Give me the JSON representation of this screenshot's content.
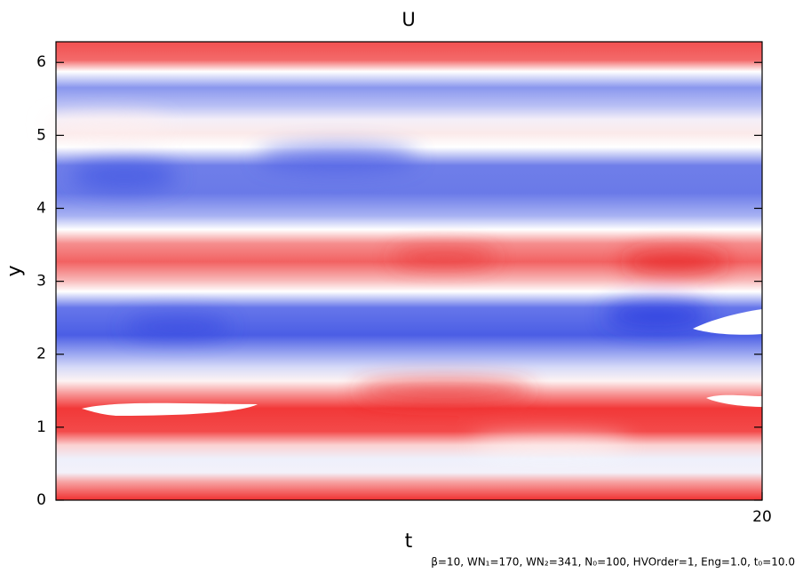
{
  "chart_data": {
    "type": "heatmap",
    "title": "U",
    "x_label": "t",
    "y_label": "y",
    "xlim": [
      0,
      20
    ],
    "xticks": [
      20
    ],
    "ylim": [
      0,
      6.283
    ],
    "yticks": [
      0,
      1,
      2,
      3,
      4,
      5,
      6
    ],
    "note": "β=10, WN₁=170, WN₂=341, N₀=100, HVOrder=1, Eng=1.0, t₀=10.0"
  }
}
